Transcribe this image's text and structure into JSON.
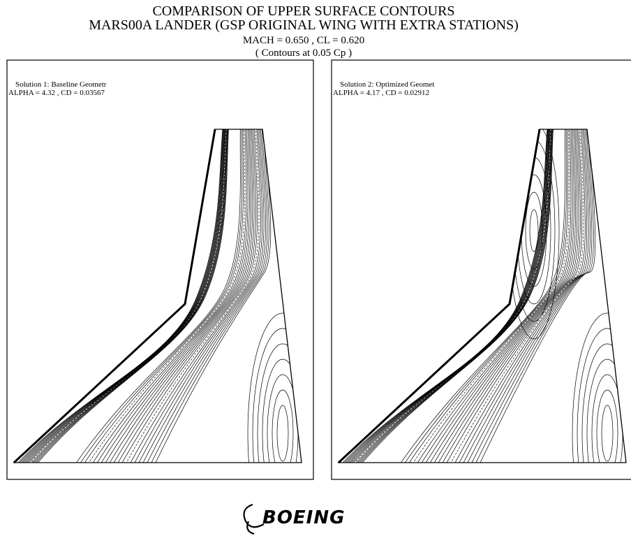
{
  "header": {
    "title_line1": "COMPARISON OF UPPER SURFACE CONTOURS",
    "title_line2": "MARS00A LANDER (GSP ORIGINAL WING WITH EXTRA STATIONS)",
    "conditions": "MACH = 0.650  ,  CL = 0.620",
    "contour_note": "( Contours at 0.05 Cp )"
  },
  "panels": [
    {
      "label": "Solution  1:   Baseline Geometr",
      "coefficients": "ALPHA =  4.32  ,  CD =  0.03567"
    },
    {
      "label": "Solution  2:   Optimized Geomet",
      "coefficients": "ALPHA =  4.17  ,  CD =  0.02912"
    }
  ],
  "logo": "BOEING"
}
